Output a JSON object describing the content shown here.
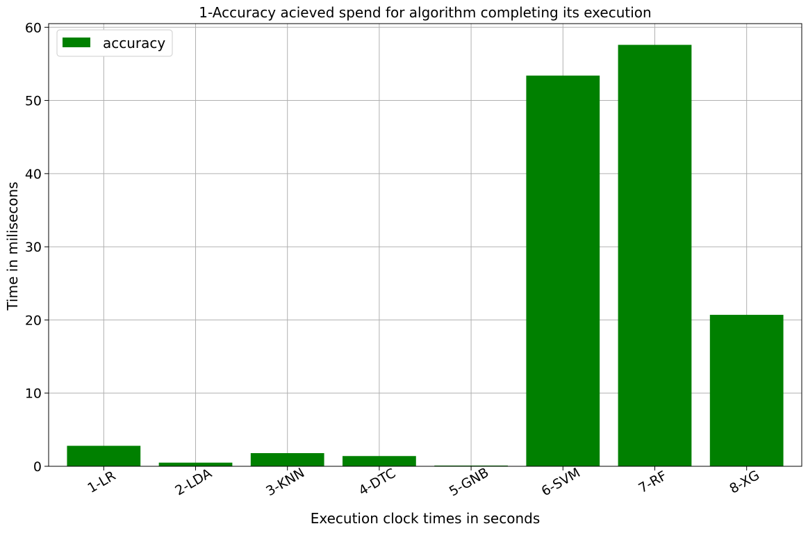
{
  "chart_data": {
    "type": "bar",
    "title": "1-Accuracy acieved spend for algorithm completing  its execution",
    "xlabel": "Execution clock times in seconds",
    "ylabel": "Time in milisecons",
    "categories": [
      "1-LR",
      "2-LDA",
      "3-KNN",
      "4-DTC",
      "5-GNB",
      "6-SVM",
      "7-RF",
      "8-XG"
    ],
    "series": [
      {
        "name": "accuracy",
        "values": [
          2.8,
          0.5,
          1.8,
          1.4,
          0.1,
          53.4,
          57.6,
          20.7
        ],
        "color": "#008000"
      }
    ],
    "ylim": [
      0,
      60.5
    ],
    "yticks": [
      0,
      10,
      20,
      30,
      40,
      50,
      60
    ],
    "grid": true,
    "legend": "top-left",
    "colors": {
      "grid": "#b0b0b0",
      "axis": "#000000",
      "background": "#ffffff"
    }
  }
}
